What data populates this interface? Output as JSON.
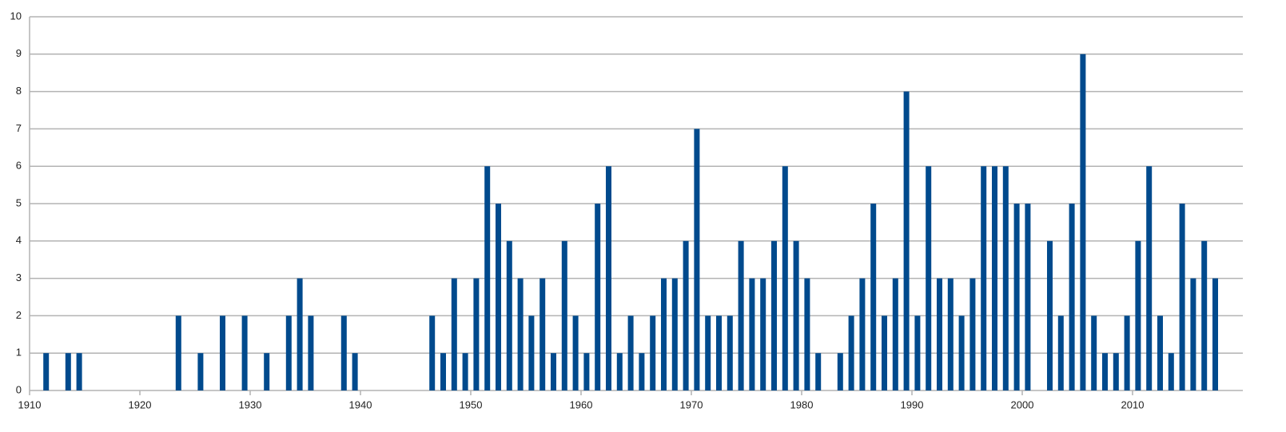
{
  "chart_data": {
    "type": "bar",
    "x": [
      1911,
      1913,
      1914,
      1923,
      1925,
      1927,
      1929,
      1931,
      1933,
      1934,
      1935,
      1938,
      1939,
      1946,
      1947,
      1948,
      1949,
      1950,
      1951,
      1952,
      1953,
      1954,
      1955,
      1956,
      1957,
      1958,
      1959,
      1960,
      1961,
      1962,
      1963,
      1964,
      1965,
      1966,
      1967,
      1968,
      1969,
      1970,
      1971,
      1972,
      1973,
      1974,
      1975,
      1976,
      1977,
      1978,
      1979,
      1980,
      1981,
      1983,
      1984,
      1985,
      1986,
      1987,
      1988,
      1989,
      1990,
      1991,
      1992,
      1993,
      1994,
      1995,
      1996,
      1997,
      1998,
      1999,
      2000,
      2002,
      2003,
      2004,
      2005,
      2006,
      2007,
      2008,
      2009,
      2010,
      2011,
      2012,
      2013,
      2014,
      2015,
      2016,
      2017
    ],
    "values": [
      1,
      1,
      1,
      2,
      1,
      2,
      2,
      1,
      2,
      3,
      2,
      2,
      1,
      2,
      1,
      3,
      1,
      3,
      6,
      5,
      4,
      3,
      2,
      3,
      1,
      4,
      2,
      1,
      5,
      6,
      1,
      2,
      1,
      2,
      3,
      3,
      4,
      7,
      2,
      2,
      2,
      4,
      3,
      3,
      4,
      6,
      4,
      3,
      1,
      1,
      2,
      3,
      5,
      2,
      3,
      8,
      2,
      6,
      3,
      3,
      2,
      3,
      6,
      6,
      6,
      5,
      5,
      4,
      2,
      5,
      9,
      2,
      1,
      1,
      2,
      4,
      6,
      2,
      1,
      5,
      3,
      4,
      3
    ],
    "color": "#004a8d",
    "xlim": [
      1910,
      2020
    ],
    "xticks": [
      1910,
      1920,
      1930,
      1940,
      1950,
      1960,
      1970,
      1980,
      1990,
      2000,
      2010
    ],
    "ylim": [
      0,
      10
    ],
    "yticks": [
      0,
      1,
      2,
      3,
      4,
      5,
      6,
      7,
      8,
      9,
      10
    ],
    "grid": true
  }
}
